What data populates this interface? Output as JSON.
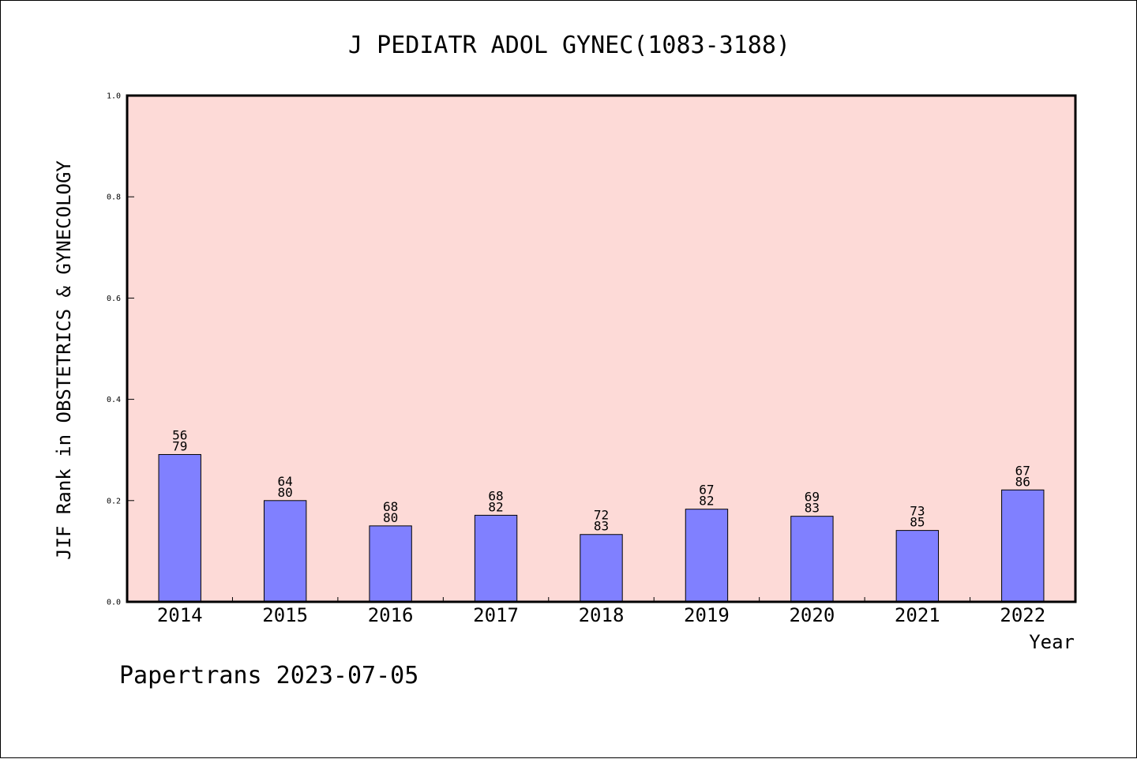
{
  "chart_data": {
    "type": "bar",
    "title": "J PEDIATR ADOL GYNEC(1083-3188)",
    "xlabel": "Year",
    "ylabel": "JIF Rank in OBSTETRICS & GYNECOLOGY",
    "ylim": [
      0,
      1.0
    ],
    "yticks": [
      "0.0",
      "0.2",
      "0.4",
      "0.6",
      "0.8",
      "1.0"
    ],
    "categories": [
      "2014",
      "2015",
      "2016",
      "2017",
      "2018",
      "2019",
      "2020",
      "2021",
      "2022"
    ],
    "values": [
      0.291,
      0.2,
      0.15,
      0.171,
      0.133,
      0.183,
      0.169,
      0.141,
      0.221
    ],
    "rank_labels": [
      "56",
      "64",
      "68",
      "68",
      "72",
      "67",
      "69",
      "73",
      "67"
    ],
    "total_labels": [
      "79",
      "80",
      "80",
      "82",
      "83",
      "82",
      "83",
      "85",
      "86"
    ],
    "grid": false,
    "colors": {
      "plot_background": "#FDDAD7",
      "bar_fill": "#8080FF",
      "bar_edge": "#000000"
    }
  },
  "footer": "Papertrans 2023-07-05"
}
